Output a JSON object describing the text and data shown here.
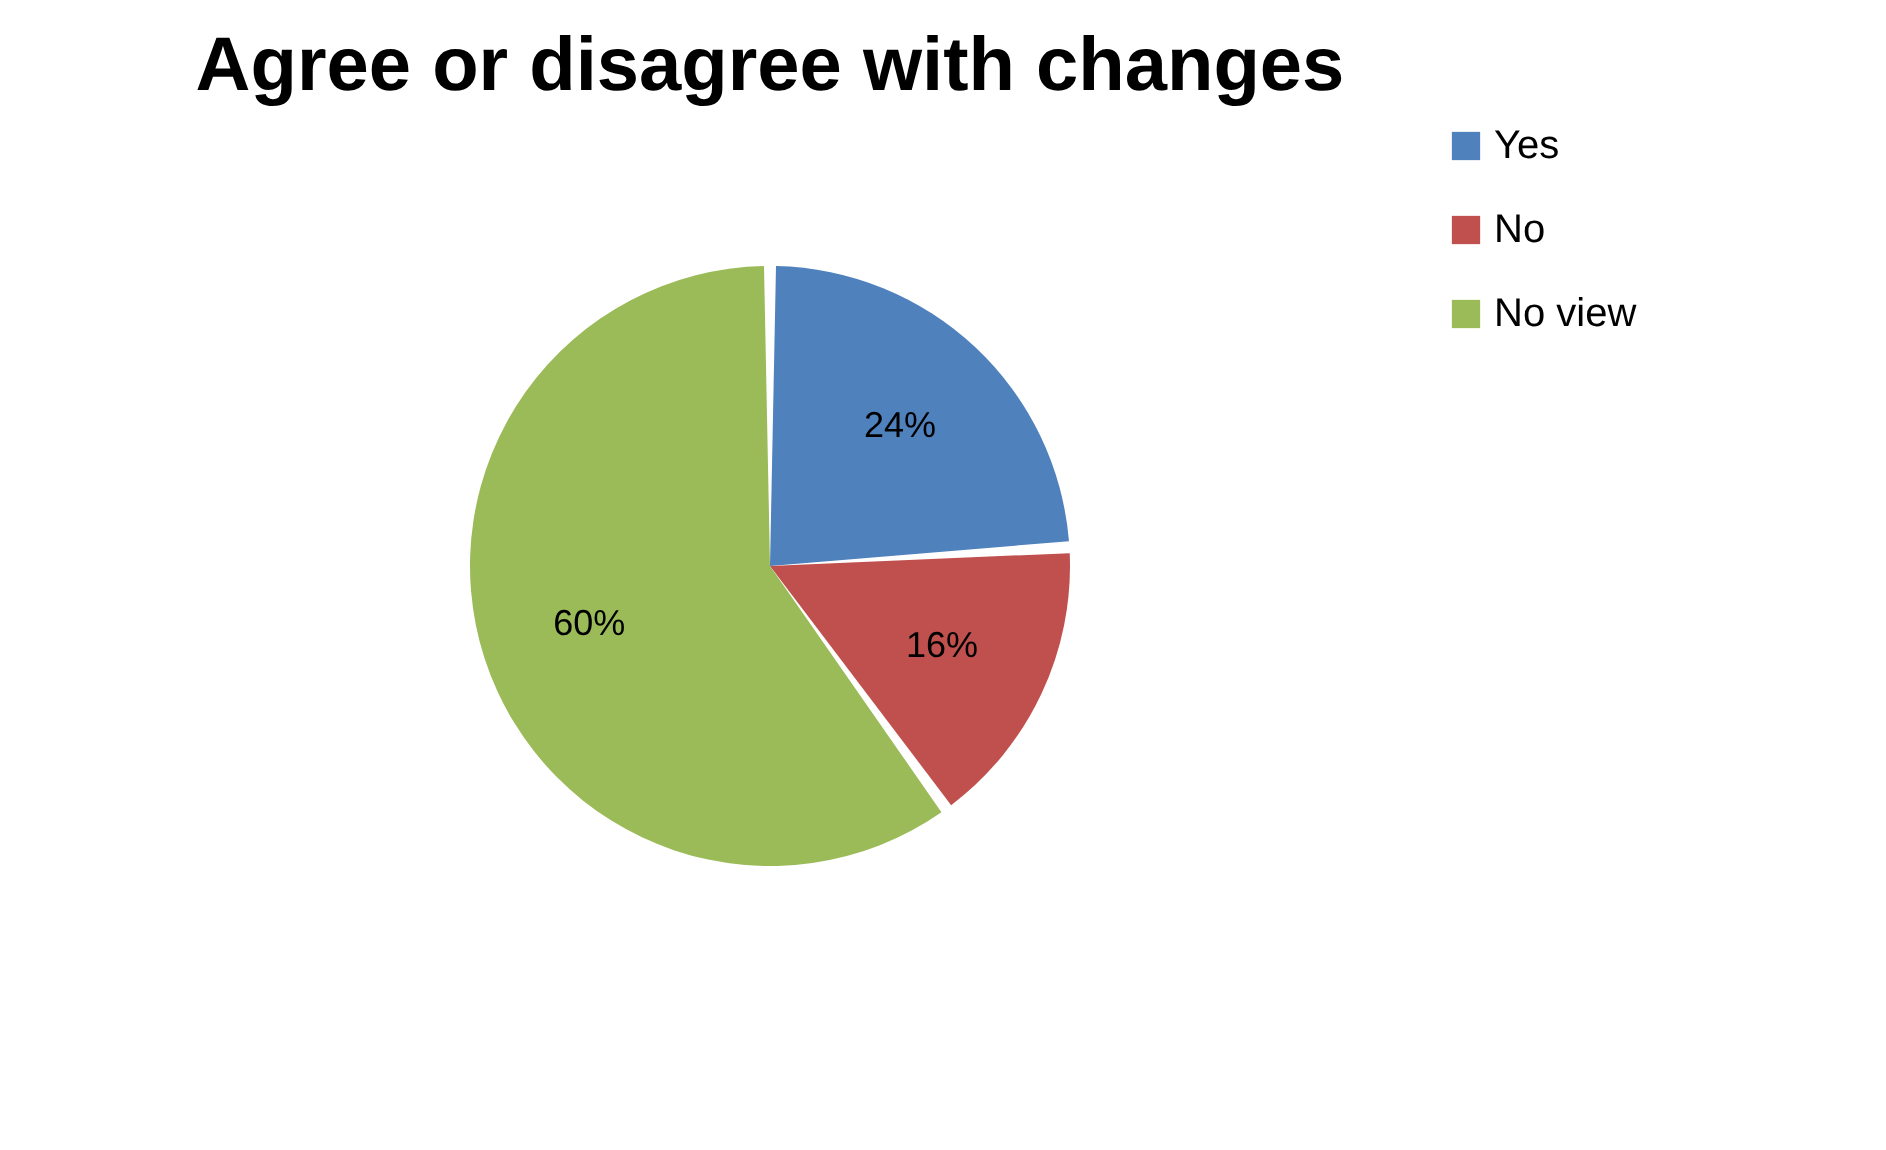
{
  "chart_data": {
    "type": "pie",
    "title": "Agree or disagree with changes",
    "categories": [
      "Yes",
      "No",
      "No view"
    ],
    "values": [
      24,
      16,
      60
    ],
    "colors": [
      "#4f81bd",
      "#c0504d",
      "#9bbb59"
    ],
    "value_labels": [
      "24%",
      "16%",
      "60%"
    ],
    "legend": "right"
  }
}
